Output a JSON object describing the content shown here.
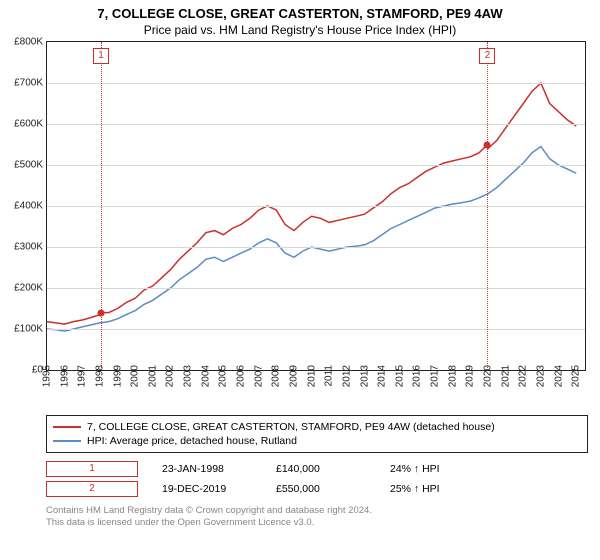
{
  "title_line1": "7, COLLEGE CLOSE, GREAT CASTERTON, STAMFORD, PE9 4AW",
  "title_line2": "Price paid vs. HM Land Registry's House Price Index (HPI)",
  "chart": {
    "type": "line",
    "background_color": "#ffffff",
    "grid_color": "#d9d9d9",
    "axis_color": "#222222",
    "x": {
      "min": 1995,
      "max": 2025.5,
      "tick_step": 1,
      "label_fontsize": 10,
      "label_rotation_deg": -90
    },
    "y": {
      "min": 0,
      "max": 800000,
      "tick_step": 100000,
      "tick_prefix": "£",
      "tick_suffix": "K",
      "label_fontsize": 10
    },
    "series": [
      {
        "name": "property_price",
        "label": "7, COLLEGE CLOSE, GREAT CASTERTON, STAMFORD, PE9 4AW (detached house)",
        "color": "#c9302c",
        "line_width": 1.5,
        "points": [
          [
            1995.0,
            118000
          ],
          [
            1995.5,
            115000
          ],
          [
            1996.0,
            112000
          ],
          [
            1996.5,
            118000
          ],
          [
            1997.0,
            122000
          ],
          [
            1997.5,
            128000
          ],
          [
            1998.0,
            135000
          ],
          [
            1998.06,
            140000
          ],
          [
            1998.5,
            140000
          ],
          [
            1999.0,
            150000
          ],
          [
            1999.5,
            165000
          ],
          [
            2000.0,
            175000
          ],
          [
            2000.5,
            195000
          ],
          [
            2001.0,
            205000
          ],
          [
            2001.5,
            225000
          ],
          [
            2002.0,
            245000
          ],
          [
            2002.5,
            270000
          ],
          [
            2003.0,
            290000
          ],
          [
            2003.5,
            310000
          ],
          [
            2004.0,
            335000
          ],
          [
            2004.5,
            340000
          ],
          [
            2005.0,
            330000
          ],
          [
            2005.5,
            345000
          ],
          [
            2006.0,
            355000
          ],
          [
            2006.5,
            370000
          ],
          [
            2007.0,
            390000
          ],
          [
            2007.5,
            400000
          ],
          [
            2008.0,
            390000
          ],
          [
            2008.5,
            355000
          ],
          [
            2009.0,
            340000
          ],
          [
            2009.5,
            360000
          ],
          [
            2010.0,
            375000
          ],
          [
            2010.5,
            370000
          ],
          [
            2011.0,
            360000
          ],
          [
            2011.5,
            365000
          ],
          [
            2012.0,
            370000
          ],
          [
            2012.5,
            375000
          ],
          [
            2013.0,
            380000
          ],
          [
            2013.5,
            395000
          ],
          [
            2014.0,
            410000
          ],
          [
            2014.5,
            430000
          ],
          [
            2015.0,
            445000
          ],
          [
            2015.5,
            455000
          ],
          [
            2016.0,
            470000
          ],
          [
            2016.5,
            485000
          ],
          [
            2017.0,
            495000
          ],
          [
            2017.5,
            505000
          ],
          [
            2018.0,
            510000
          ],
          [
            2018.5,
            515000
          ],
          [
            2019.0,
            520000
          ],
          [
            2019.5,
            530000
          ],
          [
            2019.97,
            550000
          ],
          [
            2020.0,
            540000
          ],
          [
            2020.5,
            560000
          ],
          [
            2021.0,
            590000
          ],
          [
            2021.5,
            620000
          ],
          [
            2022.0,
            650000
          ],
          [
            2022.5,
            680000
          ],
          [
            2023.0,
            700000
          ],
          [
            2023.5,
            650000
          ],
          [
            2024.0,
            630000
          ],
          [
            2024.5,
            610000
          ],
          [
            2025.0,
            595000
          ]
        ]
      },
      {
        "name": "hpi_rutland",
        "label": "HPI: Average price, detached house, Rutland",
        "color": "#5b8cc6",
        "line_width": 1.5,
        "points": [
          [
            1995.0,
            100000
          ],
          [
            1995.5,
            98000
          ],
          [
            1996.0,
            95000
          ],
          [
            1996.5,
            100000
          ],
          [
            1997.0,
            105000
          ],
          [
            1997.5,
            110000
          ],
          [
            1998.0,
            115000
          ],
          [
            1998.5,
            118000
          ],
          [
            1999.0,
            125000
          ],
          [
            1999.5,
            135000
          ],
          [
            2000.0,
            145000
          ],
          [
            2000.5,
            160000
          ],
          [
            2001.0,
            170000
          ],
          [
            2001.5,
            185000
          ],
          [
            2002.0,
            200000
          ],
          [
            2002.5,
            220000
          ],
          [
            2003.0,
            235000
          ],
          [
            2003.5,
            250000
          ],
          [
            2004.0,
            270000
          ],
          [
            2004.5,
            275000
          ],
          [
            2005.0,
            265000
          ],
          [
            2005.5,
            275000
          ],
          [
            2006.0,
            285000
          ],
          [
            2006.5,
            295000
          ],
          [
            2007.0,
            310000
          ],
          [
            2007.5,
            320000
          ],
          [
            2008.0,
            310000
          ],
          [
            2008.5,
            285000
          ],
          [
            2009.0,
            275000
          ],
          [
            2009.5,
            290000
          ],
          [
            2010.0,
            300000
          ],
          [
            2010.5,
            295000
          ],
          [
            2011.0,
            290000
          ],
          [
            2011.5,
            295000
          ],
          [
            2012.0,
            300000
          ],
          [
            2012.5,
            302000
          ],
          [
            2013.0,
            305000
          ],
          [
            2013.5,
            315000
          ],
          [
            2014.0,
            330000
          ],
          [
            2014.5,
            345000
          ],
          [
            2015.0,
            355000
          ],
          [
            2015.5,
            365000
          ],
          [
            2016.0,
            375000
          ],
          [
            2016.5,
            385000
          ],
          [
            2017.0,
            395000
          ],
          [
            2017.5,
            400000
          ],
          [
            2018.0,
            405000
          ],
          [
            2018.5,
            408000
          ],
          [
            2019.0,
            412000
          ],
          [
            2019.5,
            420000
          ],
          [
            2020.0,
            430000
          ],
          [
            2020.5,
            445000
          ],
          [
            2021.0,
            465000
          ],
          [
            2021.5,
            485000
          ],
          [
            2022.0,
            505000
          ],
          [
            2022.5,
            530000
          ],
          [
            2023.0,
            545000
          ],
          [
            2023.5,
            515000
          ],
          [
            2024.0,
            500000
          ],
          [
            2024.5,
            490000
          ],
          [
            2025.0,
            480000
          ]
        ]
      }
    ],
    "vertical_markers": [
      {
        "id": "1",
        "x": 1998.06,
        "color": "#c9302c"
      },
      {
        "id": "2",
        "x": 2019.97,
        "color": "#c9302c"
      }
    ],
    "sale_points": [
      {
        "x": 1998.06,
        "y": 140000,
        "color": "#c9302c"
      },
      {
        "x": 2019.97,
        "y": 550000,
        "color": "#c9302c"
      }
    ]
  },
  "legend": {
    "border_color": "#222222",
    "fontsize": 10.5,
    "items": [
      {
        "color": "#c9302c",
        "label": "7, COLLEGE CLOSE, GREAT CASTERTON, STAMFORD, PE9 4AW (detached house)"
      },
      {
        "color": "#5b8cc6",
        "label": "HPI: Average price, detached house, Rutland"
      }
    ]
  },
  "sales_table": {
    "fontsize": 10.5,
    "rows": [
      {
        "id": "1",
        "date": "23-JAN-1998",
        "price": "£140,000",
        "change": "24% ↑ HPI"
      },
      {
        "id": "2",
        "date": "19-DEC-2019",
        "price": "£550,000",
        "change": "25% ↑ HPI"
      }
    ]
  },
  "footer": {
    "line1": "Contains HM Land Registry data © Crown copyright and database right 2024.",
    "line2": "This data is licensed under the Open Government Licence v3.0.",
    "color": "#888888",
    "fontsize": 9.5
  }
}
